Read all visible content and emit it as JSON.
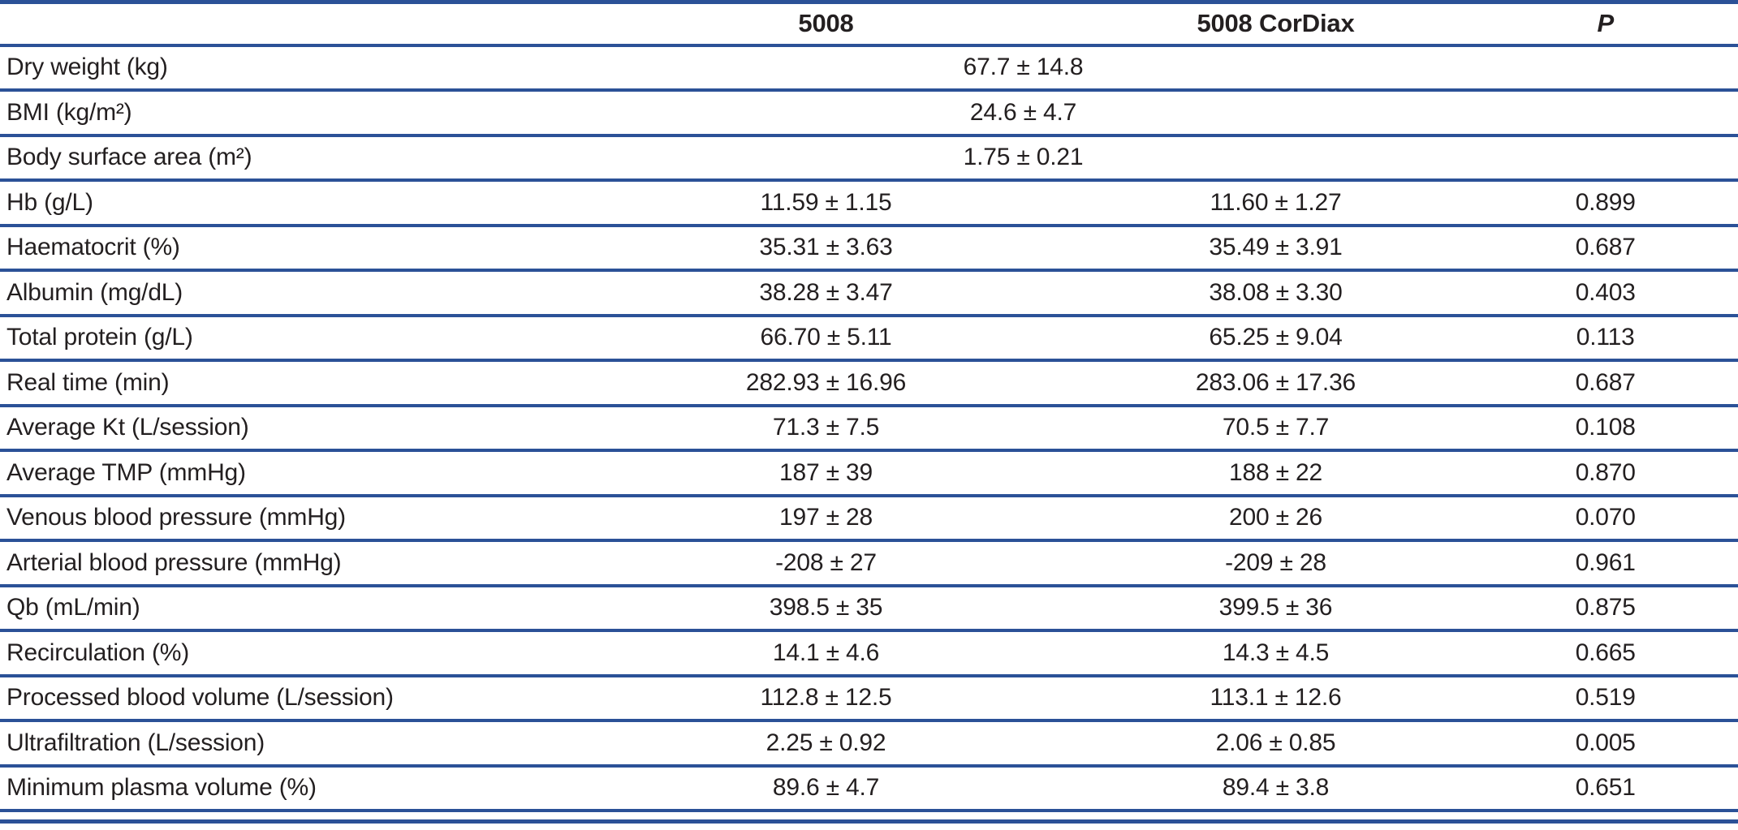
{
  "table": {
    "header": {
      "label": "",
      "col1": "5008",
      "col2": "5008 CorDiax",
      "p": "P"
    },
    "rows": [
      {
        "label": "Dry weight (kg)",
        "merged": "67.7 ± 14.8",
        "p": ""
      },
      {
        "label": "BMI (kg/m²)",
        "merged": "24.6 ± 4.7",
        "p": ""
      },
      {
        "label": "Body surface area (m²)",
        "merged": "1.75 ± 0.21",
        "p": ""
      },
      {
        "label": "Hb (g/L)",
        "v1": "11.59 ± 1.15",
        "v2": "11.60 ± 1.27",
        "p": "0.899"
      },
      {
        "label": "Haematocrit (%)",
        "v1": "35.31 ± 3.63",
        "v2": "35.49 ± 3.91",
        "p": "0.687"
      },
      {
        "label": "Albumin (mg/dL)",
        "v1": "38.28 ± 3.47",
        "v2": "38.08 ± 3.30",
        "p": "0.403"
      },
      {
        "label": "Total protein (g/L)",
        "v1": "66.70 ± 5.11",
        "v2": "65.25 ± 9.04",
        "p": "0.113"
      },
      {
        "label": "Real time (min)",
        "v1": "282.93 ± 16.96",
        "v2": "283.06 ± 17.36",
        "p": "0.687"
      },
      {
        "label": "Average Kt (L/session)",
        "v1": "71.3 ± 7.5",
        "v2": "70.5 ± 7.7",
        "p": "0.108"
      },
      {
        "label": "Average TMP (mmHg)",
        "v1": "187 ± 39",
        "v2": "188 ± 22",
        "p": "0.870"
      },
      {
        "label": "Venous blood pressure (mmHg)",
        "v1": "197 ± 28",
        "v2": "200 ± 26",
        "p": "0.070"
      },
      {
        "label": "Arterial blood pressure (mmHg)",
        "v1": "-208 ± 27",
        "v2": "-209 ± 28",
        "p": "0.961"
      },
      {
        "label": "Qb (mL/min)",
        "v1": "398.5 ± 35",
        "v2": "399.5 ± 36",
        "p": "0.875"
      },
      {
        "label": "Recirculation (%)",
        "v1": "14.1 ± 4.6",
        "v2": "14.3 ± 4.5",
        "p": "0.665"
      },
      {
        "label": "Processed blood volume (L/session)",
        "v1": "112.8 ± 12.5",
        "v2": "113.1 ± 12.6",
        "p": "0.519"
      },
      {
        "label": "Ultrafiltration (L/session)",
        "v1": "2.25 ± 0.92",
        "v2": "2.06 ± 0.85",
        "p": "0.005"
      },
      {
        "label": "Minimum plasma volume (%)",
        "v1": "89.6 ± 4.7",
        "v2": "89.4 ± 3.8",
        "p": "0.651"
      }
    ],
    "colors": {
      "rule_blue": "#2b5197",
      "text": "#231f20"
    }
  }
}
